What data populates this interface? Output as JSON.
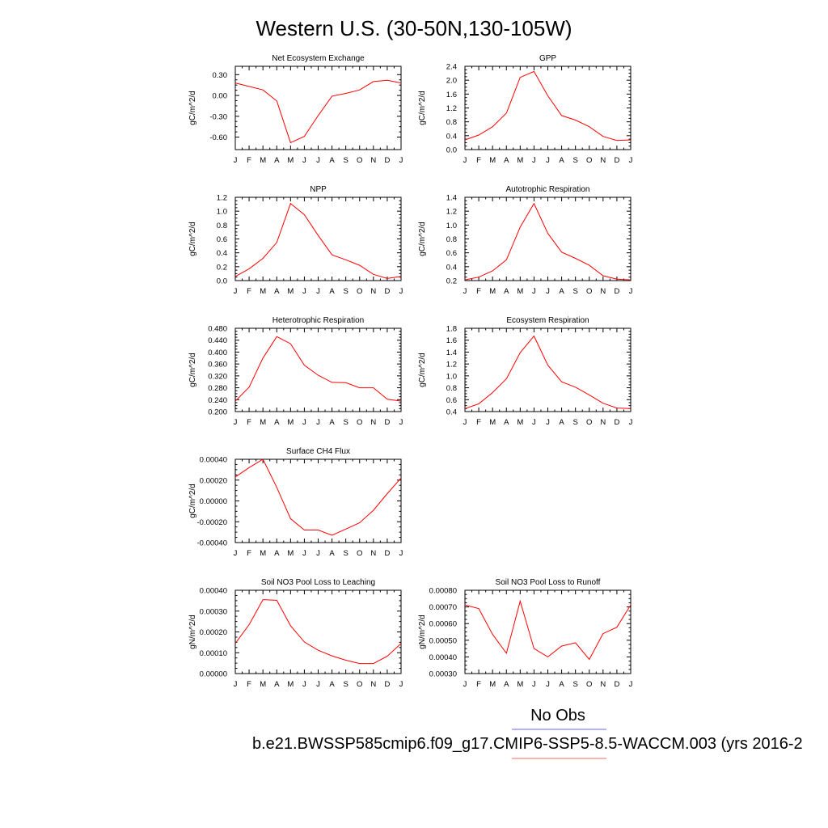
{
  "figure": {
    "title": "Western U.S. (30-50N,130-105W)",
    "legend": {
      "entries": [
        {
          "label": "No Obs",
          "color": "#6666ff"
        },
        {
          "label": "b.e21.BWSSP585cmip6.f09_g17.CMIP6-SSP5-8.5-WACCM.003 (yrs 2016-2",
          "color": "#ff6666"
        }
      ]
    }
  },
  "chart_data": [
    {
      "type": "line",
      "title": "Net Ecosystem Exchange",
      "ylabel": "gC/m^2/d",
      "categories": [
        "J",
        "F",
        "M",
        "A",
        "M",
        "J",
        "J",
        "A",
        "S",
        "O",
        "N",
        "D",
        "J"
      ],
      "ylim": [
        -0.78,
        0.42
      ],
      "yticks": [
        0.3,
        0,
        -0.3,
        -0.6
      ],
      "ytick_labels": [
        "0.30",
        "0.00",
        "-0.30",
        "-0.60"
      ],
      "series": [
        {
          "color": "#ff0000",
          "values": [
            0.18,
            0.13,
            0.08,
            -0.08,
            -0.68,
            -0.59,
            -0.29,
            -0.01,
            0.03,
            0.08,
            0.2,
            0.22,
            0.18
          ]
        }
      ]
    },
    {
      "type": "line",
      "title": "GPP",
      "ylabel": "gC/m^2/d",
      "categories": [
        "J",
        "F",
        "M",
        "A",
        "M",
        "J",
        "J",
        "A",
        "S",
        "O",
        "N",
        "D",
        "J"
      ],
      "ylim": [
        0,
        2.4
      ],
      "yticks": [
        0,
        0.4,
        0.8,
        1.2,
        1.6,
        2.0,
        2.4
      ],
      "ytick_labels": [
        "0.0",
        "0.4",
        "0.8",
        "1.2",
        "1.6",
        "2.0",
        "2.4"
      ],
      "series": [
        {
          "color": "#ff0000",
          "values": [
            0.28,
            0.42,
            0.66,
            1.05,
            2.08,
            2.25,
            1.55,
            0.98,
            0.85,
            0.66,
            0.38,
            0.26,
            0.28
          ]
        }
      ]
    },
    {
      "type": "line",
      "title": "NPP",
      "ylabel": "gC/m^2/d",
      "categories": [
        "J",
        "F",
        "M",
        "A",
        "M",
        "J",
        "J",
        "A",
        "S",
        "O",
        "N",
        "D",
        "J"
      ],
      "ylim": [
        0,
        1.2
      ],
      "yticks": [
        0,
        0.2,
        0.4,
        0.6,
        0.8,
        1.0,
        1.2
      ],
      "ytick_labels": [
        "0.0",
        "0.2",
        "0.4",
        "0.6",
        "0.8",
        "1.0",
        "1.2"
      ],
      "series": [
        {
          "color": "#ff0000",
          "values": [
            0.06,
            0.17,
            0.32,
            0.55,
            1.11,
            0.95,
            0.65,
            0.37,
            0.3,
            0.22,
            0.09,
            0.03,
            0.06
          ]
        }
      ]
    },
    {
      "type": "line",
      "title": "Autotrophic Respiration",
      "ylabel": "gC/m^2/d",
      "categories": [
        "J",
        "F",
        "M",
        "A",
        "M",
        "J",
        "J",
        "A",
        "S",
        "O",
        "N",
        "D",
        "J"
      ],
      "ylim": [
        0.2,
        1.4
      ],
      "yticks": [
        0.2,
        0.4,
        0.6,
        0.8,
        1.0,
        1.2,
        1.4
      ],
      "ytick_labels": [
        "0.2",
        "0.4",
        "0.6",
        "0.8",
        "1.0",
        "1.2",
        "1.4"
      ],
      "series": [
        {
          "color": "#ff0000",
          "values": [
            0.21,
            0.25,
            0.34,
            0.5,
            0.97,
            1.31,
            0.88,
            0.61,
            0.52,
            0.42,
            0.27,
            0.22,
            0.21
          ]
        }
      ]
    },
    {
      "type": "line",
      "title": "Heterotrophic Respiration",
      "ylabel": "gC/m^2/d",
      "categories": [
        "J",
        "F",
        "M",
        "A",
        "M",
        "J",
        "J",
        "A",
        "S",
        "O",
        "N",
        "D",
        "J"
      ],
      "ylim": [
        0.2,
        0.48
      ],
      "yticks": [
        0.2,
        0.24,
        0.28,
        0.32,
        0.36,
        0.4,
        0.44,
        0.48
      ],
      "ytick_labels": [
        "0.200",
        "0.240",
        "0.280",
        "0.320",
        "0.360",
        "0.400",
        "0.440",
        "0.480"
      ],
      "series": [
        {
          "color": "#ff0000",
          "values": [
            0.235,
            0.282,
            0.38,
            0.452,
            0.428,
            0.356,
            0.322,
            0.298,
            0.297,
            0.28,
            0.28,
            0.242,
            0.235
          ]
        }
      ]
    },
    {
      "type": "line",
      "title": "Ecosystem Respiration",
      "ylabel": "gC/m^2/d",
      "categories": [
        "J",
        "F",
        "M",
        "A",
        "M",
        "J",
        "J",
        "A",
        "S",
        "O",
        "N",
        "D",
        "J"
      ],
      "ylim": [
        0.4,
        1.8
      ],
      "yticks": [
        0.4,
        0.6,
        0.8,
        1.0,
        1.2,
        1.4,
        1.6,
        1.8
      ],
      "ytick_labels": [
        "0.4",
        "0.6",
        "0.8",
        "1.0",
        "1.2",
        "1.4",
        "1.6",
        "1.8"
      ],
      "series": [
        {
          "color": "#ff0000",
          "values": [
            0.45,
            0.53,
            0.72,
            0.95,
            1.39,
            1.67,
            1.18,
            0.9,
            0.81,
            0.68,
            0.54,
            0.46,
            0.45
          ]
        }
      ]
    },
    {
      "type": "line",
      "title": "Surface CH4 Flux",
      "ylabel": "gC/m^2/d",
      "categories": [
        "J",
        "F",
        "M",
        "A",
        "M",
        "J",
        "J",
        "A",
        "S",
        "O",
        "N",
        "D",
        "J"
      ],
      "ylim": [
        -0.0004,
        0.0004
      ],
      "yticks": [
        0.0004,
        0.0002,
        0,
        -0.0002,
        -0.0004
      ],
      "ytick_labels": [
        "0.00040",
        "0.00020",
        "0.00000",
        "-0.00020",
        "-0.00040"
      ],
      "series": [
        {
          "color": "#ff0000",
          "values": [
            0.00023,
            0.00032,
            0.0004,
            0.00013,
            -0.00017,
            -0.00028,
            -0.00028,
            -0.00033,
            -0.00027,
            -0.00021,
            -9e-05,
            7e-05,
            0.00022
          ]
        }
      ]
    },
    {
      "type": "line",
      "title": "Soil NO3 Pool Loss to Leaching",
      "ylabel": "gN/m^2/d",
      "categories": [
        "J",
        "F",
        "M",
        "A",
        "M",
        "J",
        "J",
        "A",
        "S",
        "O",
        "N",
        "D",
        "J"
      ],
      "ylim": [
        0,
        0.0004
      ],
      "yticks": [
        0,
        0.0001,
        0.0002,
        0.0003,
        0.0004
      ],
      "ytick_labels": [
        "0.00000",
        "0.00010",
        "0.00020",
        "0.00030",
        "0.00040"
      ],
      "series": [
        {
          "color": "#ff0000",
          "values": [
            0.000145,
            0.000235,
            0.000355,
            0.000352,
            0.00023,
            0.000152,
            0.000112,
            8.5e-05,
            6.4e-05,
            4.8e-05,
            4.8e-05,
            8.3e-05,
            0.000145
          ]
        }
      ]
    },
    {
      "type": "line",
      "title": "Soil NO3 Pool Loss to Runoff",
      "ylabel": "gN/m^2/d",
      "categories": [
        "J",
        "F",
        "M",
        "A",
        "M",
        "J",
        "J",
        "A",
        "S",
        "O",
        "N",
        "D",
        "J"
      ],
      "ylim": [
        0.0003,
        0.0008
      ],
      "yticks": [
        0.0003,
        0.0004,
        0.0005,
        0.0006,
        0.0007,
        0.0008
      ],
      "ytick_labels": [
        "0.00030",
        "0.00040",
        "0.00050",
        "0.00060",
        "0.00070",
        "0.00080"
      ],
      "series": [
        {
          "color": "#ff0000",
          "values": [
            0.000712,
            0.00069,
            0.000535,
            0.000422,
            0.000735,
            0.00045,
            0.0004,
            0.000465,
            0.000485,
            0.000385,
            0.00054,
            0.000578,
            0.000712
          ]
        }
      ]
    }
  ]
}
